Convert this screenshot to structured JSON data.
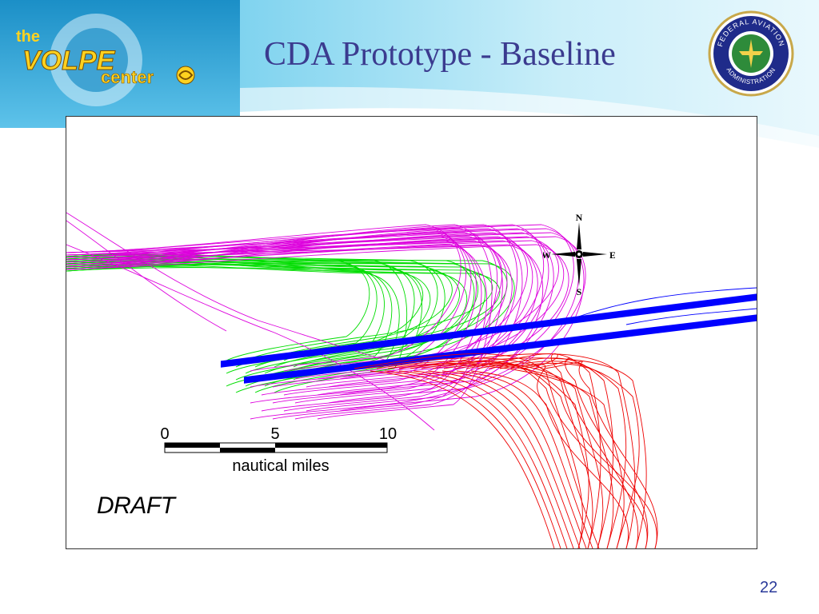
{
  "slide": {
    "title": "CDA Prototype - Baseline",
    "page_number": "22"
  },
  "logo": {
    "line1": "the",
    "line2": "VOLPE",
    "line3": "center"
  },
  "seal": {
    "top_text": "FEDERAL AVIATION",
    "bottom_text": "ADMINISTRATION"
  },
  "map": {
    "compass": {
      "n": "N",
      "s": "S",
      "e": "E",
      "w": "W"
    },
    "scale_bar": {
      "tick_0": "0",
      "tick_5": "5",
      "tick_10": "10",
      "unit": "nautical miles"
    },
    "watermark": "DRAFT",
    "track_colors": {
      "green": "#00dd00",
      "magenta": "#dd00dd",
      "blue": "#0000ff",
      "red": "#ee0000"
    }
  }
}
